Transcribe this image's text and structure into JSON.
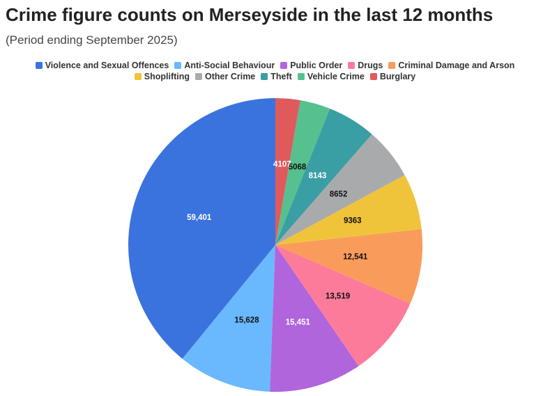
{
  "chart_data": {
    "type": "pie",
    "title": "Crime figure counts on Merseyside in the last 12 months",
    "subtitle": "(Period ending September 2025)",
    "categories": [
      "Violence and Sexual Offences",
      "Anti-Social Behaviour",
      "Public Order",
      "Drugs",
      "Criminal Damage and Arson",
      "Shoplifting",
      "Other Crime",
      "Theft",
      "Vehicle Crime",
      "Burglary"
    ],
    "values": [
      59401,
      15628,
      15451,
      13519,
      12541,
      9363,
      8652,
      8143,
      5068,
      4107
    ],
    "value_labels": [
      "59,401",
      "15,628",
      "15,451",
      "13,519",
      "12,541",
      "9363",
      "8652",
      "8143",
      "5068",
      "4107"
    ],
    "colors": [
      "#3b73de",
      "#6ab8fd",
      "#b065dc",
      "#fd7b9a",
      "#f99c5b",
      "#f0c43a",
      "#a9aaac",
      "#3a9ea5",
      "#56c08e",
      "#e05a5c"
    ],
    "legend": "top"
  }
}
